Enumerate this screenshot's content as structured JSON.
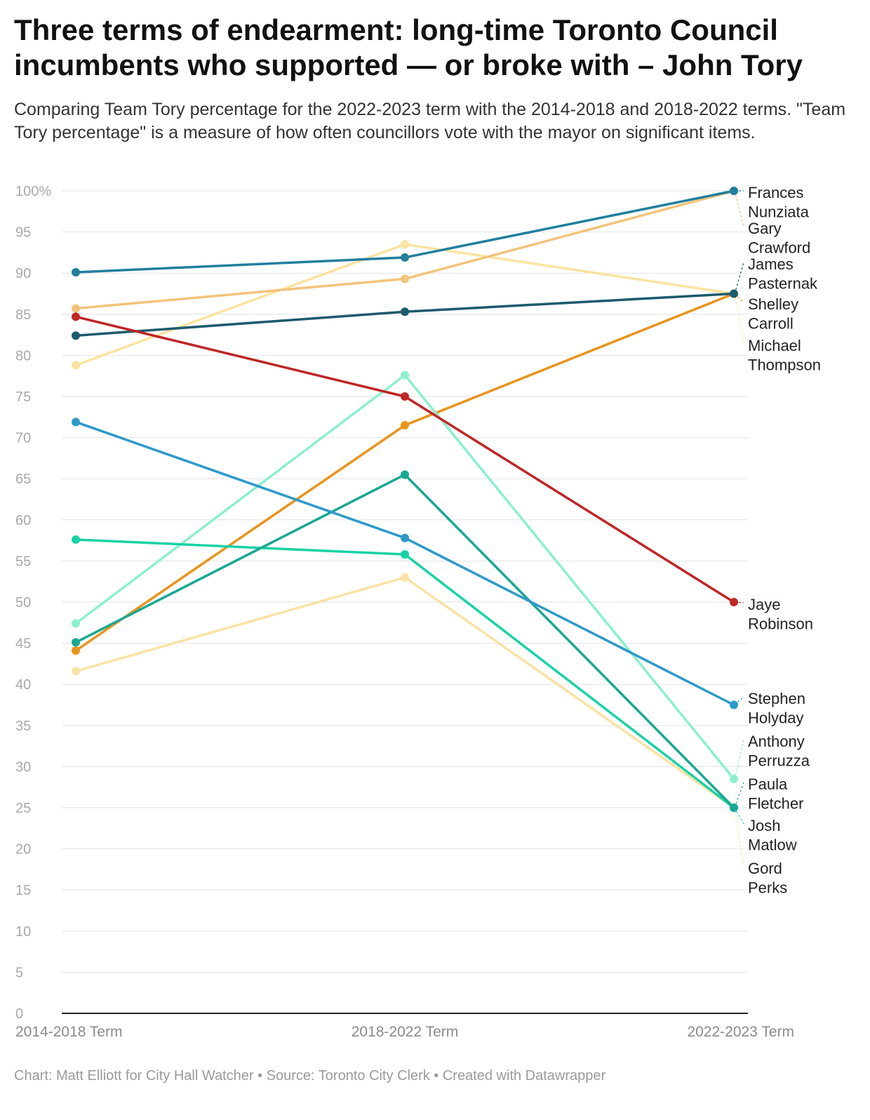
{
  "title": "Three terms of endearment: long-time Toronto Council incumbents who supported — or broke with – John Tory",
  "subtitle": "Comparing Team Tory percentage for the 2022-2023 term with the 2014-2018 and 2018-2022 terms. \"Team Tory percentage\" is a measure of how often councillors vote with the mayor on significant items.",
  "footer": "Chart: Matt Elliott for City Hall Watcher • Source: Toronto City Clerk • Created with Datawrapper",
  "chart_data": {
    "type": "line",
    "categories": [
      "2014-2018 Term",
      "2018-2022 Term",
      "2022-2023 Term"
    ],
    "ylim": [
      0,
      100
    ],
    "yticks": [
      0,
      5,
      10,
      15,
      20,
      25,
      30,
      35,
      40,
      45,
      50,
      55,
      60,
      65,
      70,
      75,
      80,
      85,
      90,
      95,
      100
    ],
    "ytick_labels": [
      "0",
      "5",
      "10",
      "15",
      "20",
      "25",
      "30",
      "35",
      "40",
      "45",
      "50",
      "55",
      "60",
      "65",
      "70",
      "75",
      "80",
      "85",
      "90",
      "95",
      "100%"
    ],
    "grid": true,
    "series": [
      {
        "name": "Michael Thompson",
        "color": "#fbe3a0",
        "values": [
          78.8,
          93.5,
          87.5
        ]
      },
      {
        "name": "Gord Perks",
        "color": "#f8e2a4",
        "values": [
          41.6,
          53.0,
          25.0
        ]
      },
      {
        "name": "Gary Crawford",
        "color": "#f2c37a",
        "values": [
          85.7,
          89.3,
          100
        ]
      },
      {
        "name": "Shelley Carroll",
        "color": "#e8941c",
        "values": [
          44.1,
          71.5,
          87.5
        ]
      },
      {
        "name": "Anthony Perruzza",
        "color": "#8cf0cc",
        "values": [
          47.4,
          77.6,
          28.5
        ]
      },
      {
        "name": "Josh Matlow",
        "color": "#18d2a6",
        "values": [
          57.6,
          55.8,
          25.0
        ]
      },
      {
        "name": "Paula Fletcher",
        "color": "#1aa893",
        "values": [
          45.1,
          65.5,
          25.0
        ]
      },
      {
        "name": "Stephen Holyday",
        "color": "#2d9ac9",
        "values": [
          71.9,
          57.8,
          37.5
        ]
      },
      {
        "name": "Frances Nunziata",
        "color": "#217f9d",
        "values": [
          90.1,
          91.9,
          100
        ]
      },
      {
        "name": "James Pasternak",
        "color": "#1c5a6e",
        "values": [
          82.4,
          85.3,
          87.5
        ]
      },
      {
        "name": "Jaye Robinson",
        "color": "#bf2626",
        "values": [
          84.7,
          75.0,
          50.0
        ]
      }
    ],
    "end_labels": [
      {
        "series": "Frances Nunziata",
        "lines": [
          "Frances",
          "Nunziata"
        ],
        "leader_color": "#217f9d"
      },
      {
        "series": "Gary Crawford",
        "lines": [
          "Gary",
          "Crawford"
        ],
        "leader_color": "#f2c37a"
      },
      {
        "series": "James Pasternak",
        "lines": [
          "James",
          "Pasternak"
        ],
        "leader_color": "#1c5a6e"
      },
      {
        "series": "Shelley Carroll",
        "lines": [
          "Shelley",
          "Carroll"
        ],
        "leader_color": "#e8941c"
      },
      {
        "series": "Michael Thompson",
        "lines": [
          "Michael",
          "Thompson"
        ],
        "leader_color": "#fbe3a0"
      },
      {
        "series": "Jaye Robinson",
        "lines": [
          "Jaye",
          "Robinson"
        ],
        "leader_color": "#bf2626"
      },
      {
        "series": "Stephen Holyday",
        "lines": [
          "Stephen",
          "Holyday"
        ],
        "leader_color": "#2d9ac9"
      },
      {
        "series": "Anthony Perruzza",
        "lines": [
          "Anthony",
          "Perruzza"
        ],
        "leader_color": "#8cf0cc"
      },
      {
        "series": "Paula Fletcher",
        "lines": [
          "Paula",
          "Fletcher"
        ],
        "leader_color": "#1aa893"
      },
      {
        "series": "Josh Matlow",
        "lines": [
          "Josh",
          "Matlow"
        ],
        "leader_color": "#18d2a6"
      },
      {
        "series": "Gord Perks",
        "lines": [
          "Gord",
          "Perks"
        ],
        "leader_color": "#f8e2a4"
      }
    ]
  }
}
